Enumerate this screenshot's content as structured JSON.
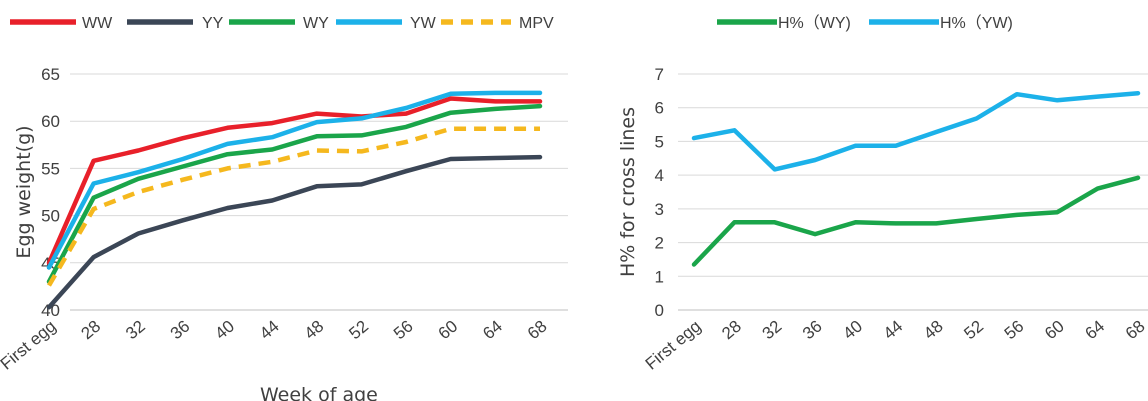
{
  "chart_data": [
    {
      "type": "line",
      "title": "",
      "xlabel": "Week of age",
      "ylabel": "Egg weight(g)",
      "ylim": [
        40,
        65
      ],
      "yticks": [
        40,
        45,
        50,
        55,
        60,
        65
      ],
      "grid": true,
      "legend_position": "top",
      "categories": [
        "First egg",
        "28",
        "32",
        "36",
        "40",
        "44",
        "48",
        "52",
        "56",
        "60",
        "64",
        "68"
      ],
      "series": [
        {
          "name": "WW",
          "color": "#e8202a",
          "dash": false,
          "values": [
            45.0,
            55.8,
            56.9,
            58.2,
            59.3,
            59.8,
            60.8,
            60.5,
            60.8,
            62.4,
            62.1,
            62.1
          ]
        },
        {
          "name": "YY",
          "color": "#3b4656",
          "dash": false,
          "values": [
            40.3,
            45.6,
            48.1,
            49.5,
            50.8,
            51.6,
            53.1,
            53.3,
            54.7,
            56.0,
            56.1,
            56.2
          ]
        },
        {
          "name": "WY",
          "color": "#1aa54a",
          "dash": false,
          "values": [
            43.0,
            51.9,
            53.9,
            55.2,
            56.5,
            57.0,
            58.4,
            58.5,
            59.4,
            60.9,
            61.3,
            61.6
          ]
        },
        {
          "name": "YW",
          "color": "#1cb1e9",
          "dash": false,
          "values": [
            44.5,
            53.4,
            54.6,
            56.0,
            57.6,
            58.3,
            59.9,
            60.3,
            61.4,
            62.9,
            63.0,
            63.0
          ]
        },
        {
          "name": "MPV",
          "color": "#f5b81e",
          "dash": true,
          "values": [
            42.6,
            50.7,
            52.5,
            53.8,
            55.0,
            55.7,
            56.9,
            56.8,
            57.8,
            59.2,
            59.2,
            59.2
          ]
        }
      ]
    },
    {
      "type": "line",
      "title": "",
      "xlabel": "",
      "ylabel": "H% for cross lines",
      "ylim": [
        0,
        7
      ],
      "yticks": [
        0,
        1,
        2,
        3,
        4,
        5,
        6,
        7
      ],
      "grid": true,
      "legend_position": "top",
      "categories": [
        "First egg",
        "28",
        "32",
        "36",
        "40",
        "44",
        "48",
        "52",
        "56",
        "60",
        "64",
        "68"
      ],
      "series": [
        {
          "name": "H%（WY)",
          "color": "#1aa54a",
          "dash": false,
          "values": [
            1.35,
            2.6,
            2.6,
            2.25,
            2.6,
            2.57,
            2.57,
            2.7,
            2.82,
            2.9,
            3.6,
            3.92
          ]
        },
        {
          "name": "H%（YW)",
          "color": "#1cb1e9",
          "dash": false,
          "values": [
            5.1,
            5.33,
            4.17,
            4.45,
            4.87,
            4.87,
            5.28,
            5.68,
            6.4,
            6.22,
            6.33,
            6.43
          ]
        }
      ]
    }
  ]
}
